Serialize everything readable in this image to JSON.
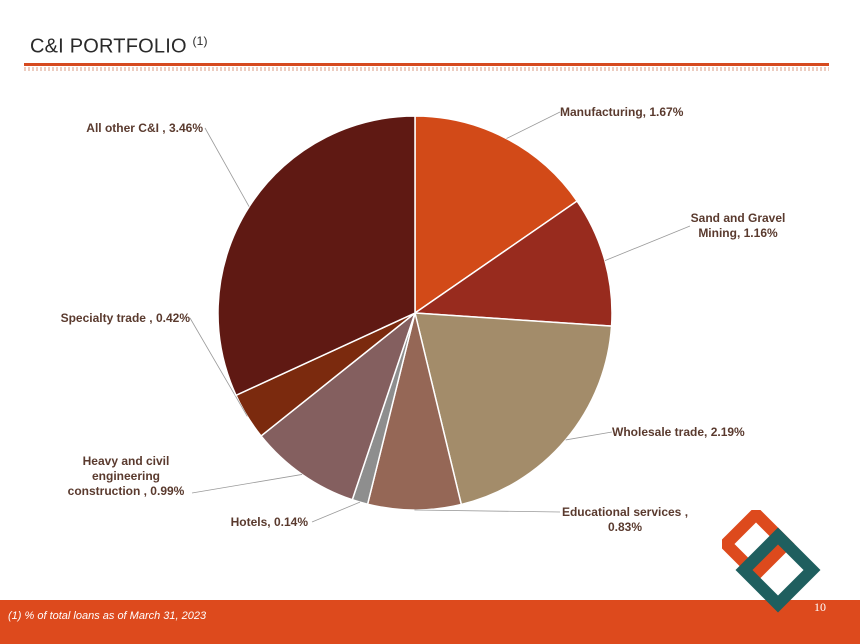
{
  "header": {
    "title": "C&I PORTFOLIO",
    "title_sup": "(1)"
  },
  "footer": {
    "footnote": "(1)  % of total loans as of March 31, 2023",
    "page_number": "10"
  },
  "colors": {
    "accent": "#dd4a1d",
    "logo_orange": "#dd4a1d",
    "logo_teal": "#1f5f5f"
  },
  "chart_data": {
    "type": "pie",
    "title": "",
    "slices": [
      {
        "label_lines": [
          "Manufacturing, 1.67%"
        ],
        "value": 1.67,
        "color": "#d24a18"
      },
      {
        "label_lines": [
          "Sand and Gravel",
          "Mining, 1.16%"
        ],
        "value": 1.16,
        "color": "#982b1e"
      },
      {
        "label_lines": [
          "Wholesale trade, 2.19%"
        ],
        "value": 2.19,
        "color": "#a38c6a"
      },
      {
        "label_lines": [
          "Educational services ,",
          "0.83%"
        ],
        "value": 0.83,
        "color": "#956756"
      },
      {
        "label_lines": [
          "Hotels, 0.14%"
        ],
        "value": 0.14,
        "color": "#8e8e8e"
      },
      {
        "label_lines": [
          "Heavy and civil",
          "engineering",
          "construction , 0.99%"
        ],
        "value": 0.99,
        "color": "#845f5f"
      },
      {
        "label_lines": [
          "Specialty trade , 0.42%"
        ],
        "value": 0.42,
        "color": "#7b2a0e"
      },
      {
        "label_lines": [
          "All other C&I , 3.46%"
        ],
        "value": 3.46,
        "color": "#5f1913"
      }
    ]
  }
}
